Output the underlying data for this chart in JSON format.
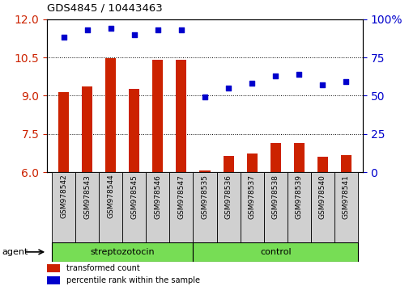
{
  "title": "GDS4845 / 10443463",
  "samples": [
    "GSM978542",
    "GSM978543",
    "GSM978544",
    "GSM978545",
    "GSM978546",
    "GSM978547",
    "GSM978535",
    "GSM978536",
    "GSM978537",
    "GSM978538",
    "GSM978539",
    "GSM978540",
    "GSM978541"
  ],
  "bar_values": [
    9.15,
    9.35,
    10.47,
    9.28,
    10.42,
    10.42,
    6.08,
    6.65,
    6.72,
    7.15,
    7.15,
    6.6,
    6.68
  ],
  "scatter_values": [
    88,
    93,
    94,
    90,
    93,
    93,
    49,
    55,
    58,
    63,
    64,
    57,
    59
  ],
  "ylim_left": [
    6,
    12
  ],
  "ylim_right": [
    0,
    100
  ],
  "yticks_left": [
    6,
    7.5,
    9,
    10.5,
    12
  ],
  "yticks_right": [
    0,
    25,
    50,
    75,
    100
  ],
  "bar_color": "#CC2200",
  "scatter_color": "#0000CC",
  "group1_label": "streptozotocin",
  "group2_label": "control",
  "group1_indices": [
    0,
    1,
    2,
    3,
    4,
    5
  ],
  "group2_indices": [
    6,
    7,
    8,
    9,
    10,
    11,
    12
  ],
  "agent_label": "agent",
  "legend1": "transformed count",
  "legend2": "percentile rank within the sample",
  "plot_bg": "#ffffff",
  "green_bg": "#77DD55",
  "gray_bg": "#D0D0D0",
  "bar_width": 0.45,
  "scatter_size": 18
}
